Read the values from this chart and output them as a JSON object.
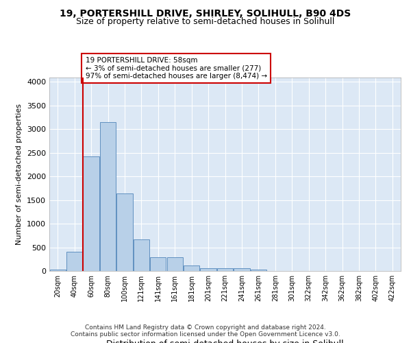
{
  "title1": "19, PORTERSHILL DRIVE, SHIRLEY, SOLIHULL, B90 4DS",
  "title2": "Size of property relative to semi-detached houses in Solihull",
  "xlabel": "Distribution of semi-detached houses by size in Solihull",
  "ylabel": "Number of semi-detached properties",
  "footer1": "Contains HM Land Registry data © Crown copyright and database right 2024.",
  "footer2": "Contains public sector information licensed under the Open Government Licence v3.0.",
  "bar_labels": [
    "20sqm",
    "40sqm",
    "60sqm",
    "80sqm",
    "100sqm",
    "121sqm",
    "141sqm",
    "161sqm",
    "181sqm",
    "201sqm",
    "221sqm",
    "241sqm",
    "261sqm",
    "281sqm",
    "301sqm",
    "322sqm",
    "342sqm",
    "362sqm",
    "382sqm",
    "402sqm",
    "422sqm"
  ],
  "bar_values": [
    30,
    400,
    2430,
    3150,
    1640,
    670,
    290,
    290,
    120,
    65,
    65,
    65,
    30,
    0,
    0,
    0,
    0,
    0,
    0,
    0,
    0
  ],
  "bar_color": "#b8d0e8",
  "bar_edge_color": "#6090c0",
  "vline_color": "#cc0000",
  "vline_x_index": 2,
  "annotation_text": "19 PORTERSHILL DRIVE: 58sqm\n← 3% of semi-detached houses are smaller (277)\n97% of semi-detached houses are larger (8,474) →",
  "annotation_box_color": "#ffffff",
  "annotation_box_edge": "#cc0000",
  "ylim": [
    0,
    4100
  ],
  "yticks": [
    0,
    500,
    1000,
    1500,
    2000,
    2500,
    3000,
    3500,
    4000
  ],
  "bg_color": "#ffffff",
  "plot_bg_color": "#dce8f5",
  "title1_fontsize": 10,
  "title2_fontsize": 9
}
